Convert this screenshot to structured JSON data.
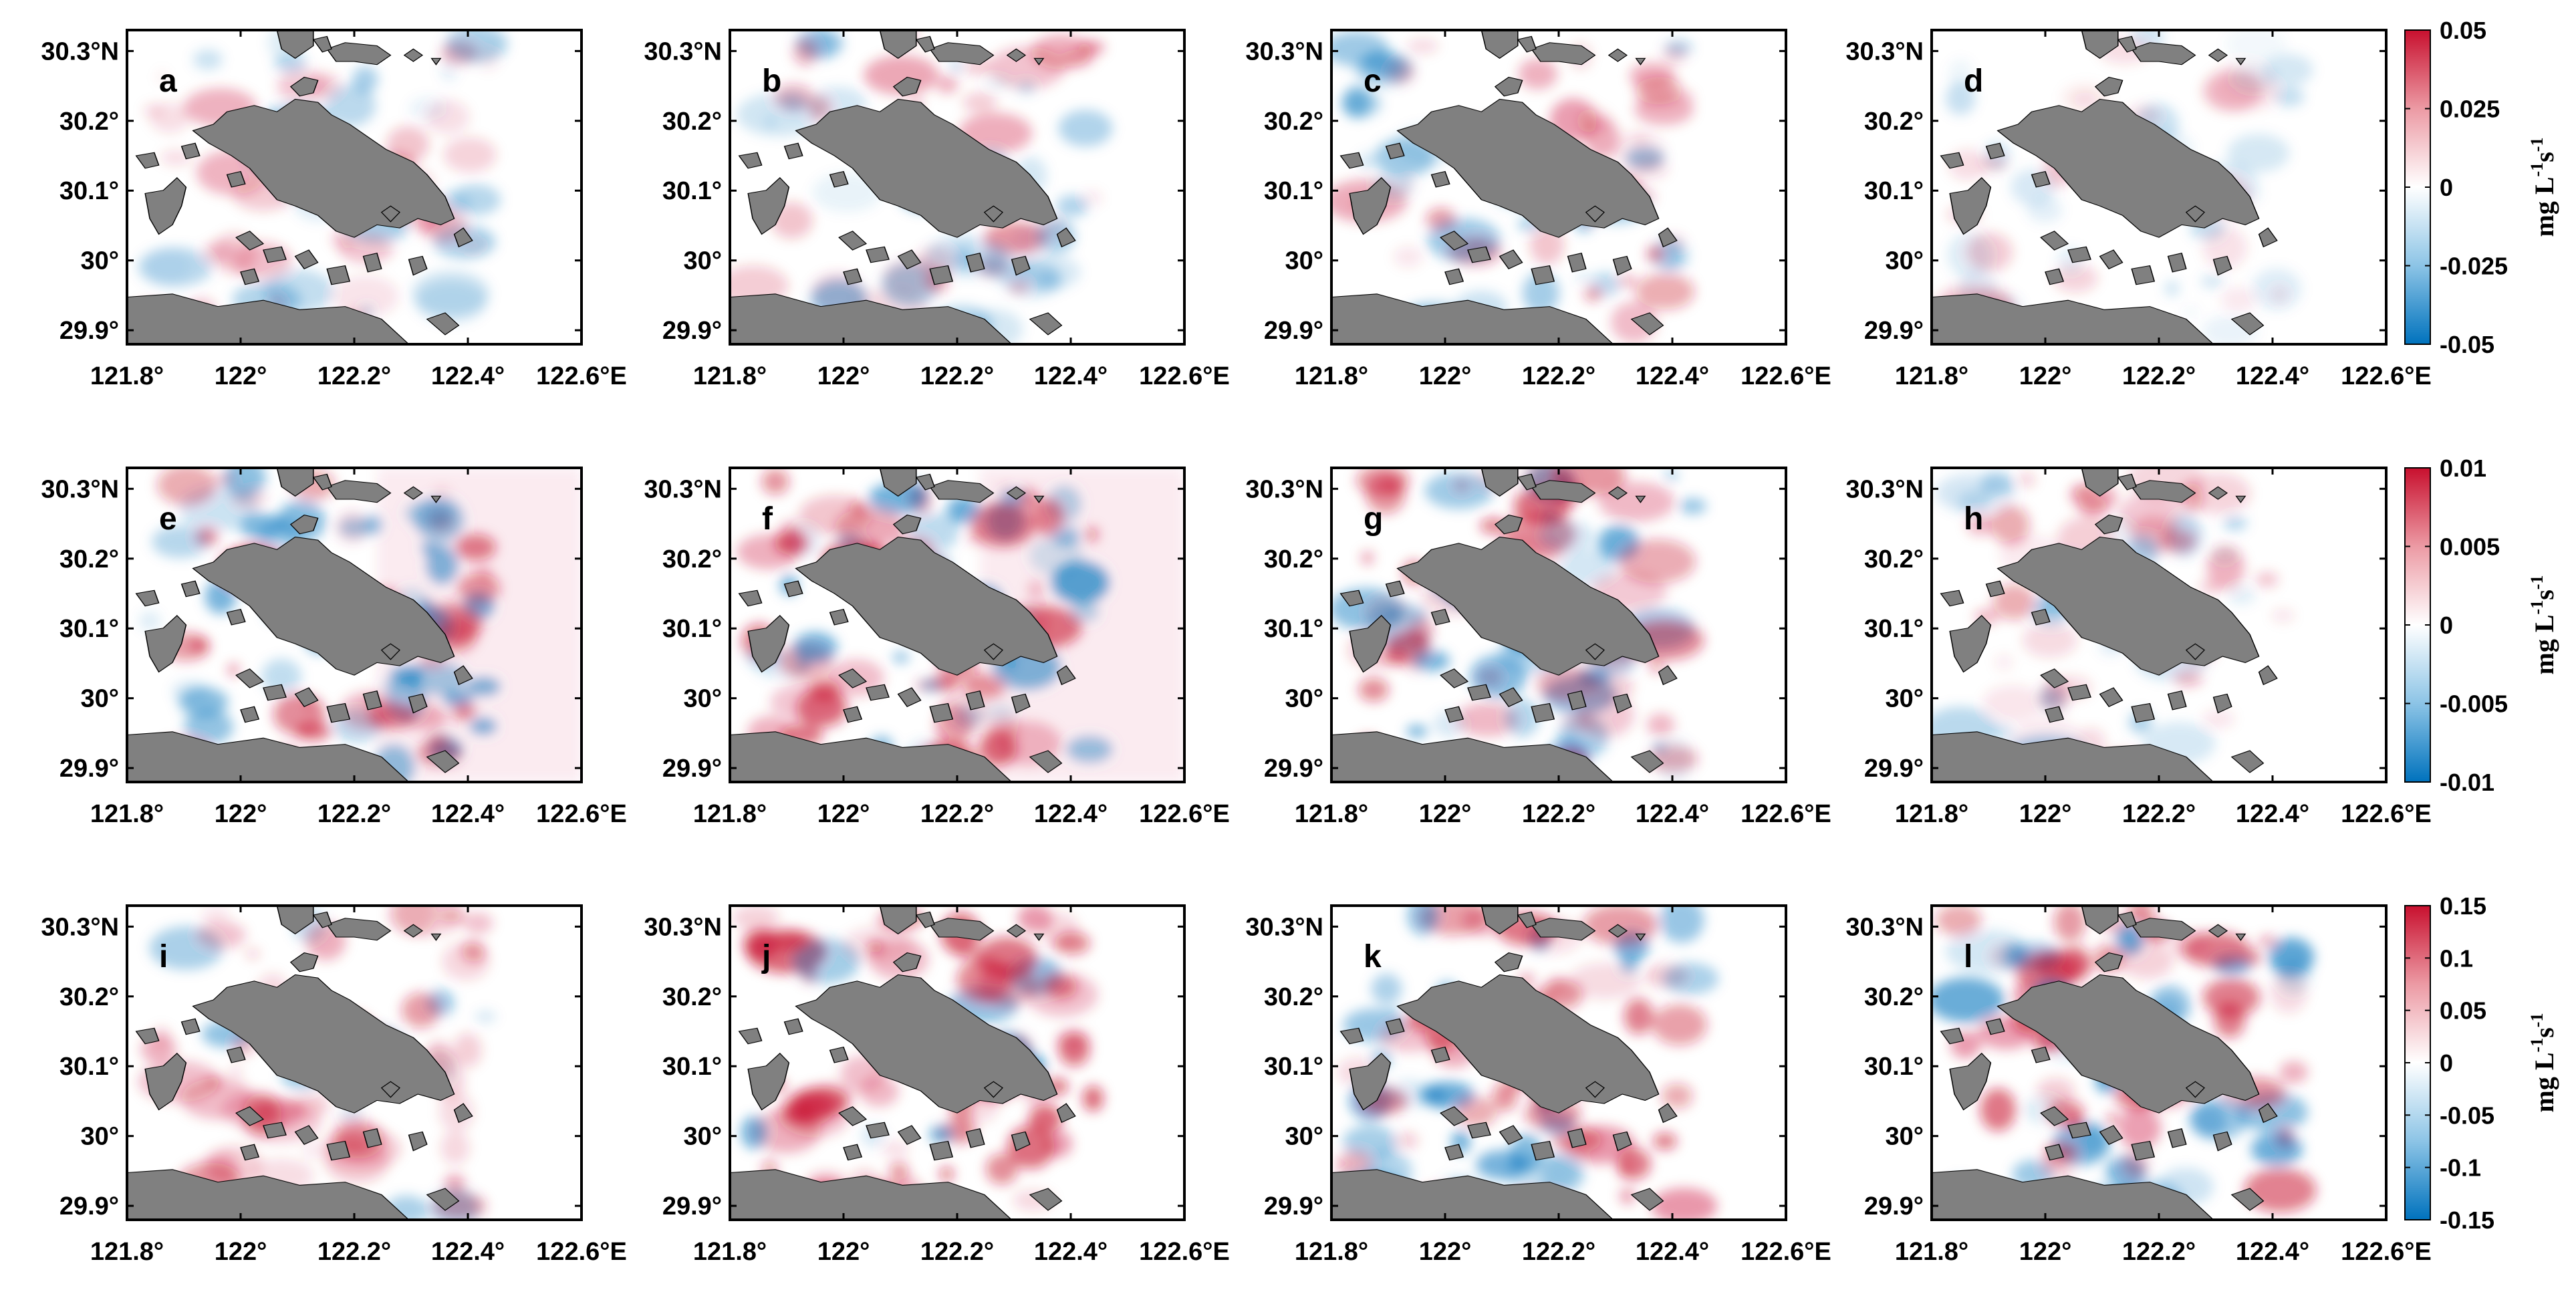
{
  "map": {
    "x_ticks": [
      {
        "lon": 121.8,
        "label": "121.8°"
      },
      {
        "lon": 122.0,
        "label": "122°"
      },
      {
        "lon": 122.2,
        "label": "122.2°"
      },
      {
        "lon": 122.4,
        "label": "122.4°"
      },
      {
        "lon": 122.6,
        "label": "122.6°E"
      }
    ],
    "y_ticks": [
      {
        "lat": 30.3,
        "label": "30.3°N"
      },
      {
        "lat": 30.2,
        "label": "30.2°"
      },
      {
        "lat": 30.1,
        "label": "30.1°"
      },
      {
        "lat": 30.0,
        "label": "30°"
      },
      {
        "lat": 29.9,
        "label": "29.9°"
      }
    ],
    "lon_range": [
      121.8,
      122.6
    ],
    "lat_range": [
      29.88,
      30.33
    ],
    "land_color": "#808080",
    "positive_color": "#c8102e",
    "negative_color": "#0072bd",
    "colormap": "diverging blue-white-red"
  },
  "rows": [
    {
      "panels": [
        "a",
        "b",
        "c",
        "d"
      ],
      "colorbar": {
        "ticks": [
          "0.05",
          "0.025",
          "0",
          "-0.025",
          "-0.05"
        ],
        "range": [
          -0.05,
          0.05
        ],
        "unit_main": "mg L",
        "unit_sup1": "-1",
        "unit_mid": "s",
        "unit_sup2": "-1"
      }
    },
    {
      "panels": [
        "e",
        "f",
        "g",
        "h"
      ],
      "colorbar": {
        "ticks": [
          "0.01",
          "0.005",
          "0",
          "-0.005",
          "-0.01"
        ],
        "range": [
          -0.01,
          0.01
        ],
        "unit_main": "mg L",
        "unit_sup1": "-1",
        "unit_mid": "s",
        "unit_sup2": "-1"
      }
    },
    {
      "panels": [
        "i",
        "j",
        "k",
        "l"
      ],
      "colorbar": {
        "ticks": [
          "0.15",
          "0.1",
          "0.05",
          "0",
          "-0.05",
          "-0.1",
          "-0.15"
        ],
        "range": [
          -0.15,
          0.15
        ],
        "unit_main": "mg L",
        "unit_sup1": "-1",
        "unit_mid": "s",
        "unit_sup2": "-1"
      }
    }
  ],
  "panel_intensity": {
    "a": 0.45,
    "b": 0.55,
    "c": 0.55,
    "d": 0.3,
    "e": 0.75,
    "f": 0.8,
    "g": 0.75,
    "h": 0.45,
    "i": 0.55,
    "j": 0.8,
    "k": 0.75,
    "l": 0.85
  }
}
